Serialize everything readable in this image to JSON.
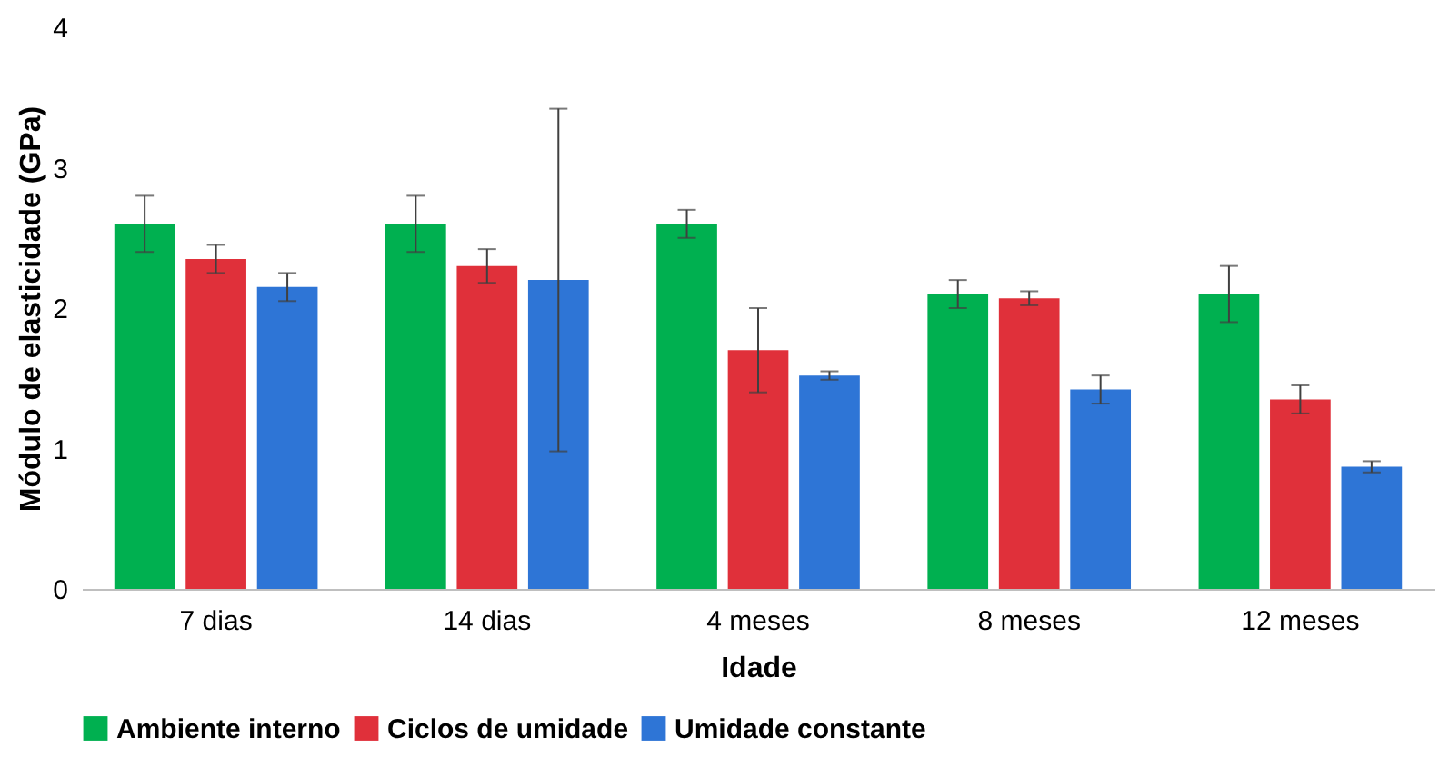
{
  "chart_data": {
    "type": "bar",
    "xlabel": "Idade",
    "ylabel": "Módulo de elasticidade (GPa)",
    "categories": [
      "7 dias",
      "14 dias",
      "4 meses",
      "8 meses",
      "12 meses"
    ],
    "series": [
      {
        "name": "Ambiente interno",
        "color": "#00b050",
        "values": [
          2.6,
          2.6,
          2.6,
          2.1,
          2.1
        ],
        "errors": [
          0.2,
          0.2,
          0.1,
          0.1,
          0.2
        ]
      },
      {
        "name": "Ciclos de umidade",
        "color": "#e0303a",
        "values": [
          2.35,
          2.3,
          1.7,
          2.07,
          1.35
        ],
        "errors": [
          0.1,
          0.12,
          0.3,
          0.05,
          0.1
        ]
      },
      {
        "name": "Umidade constante",
        "color": "#2e75d6",
        "values": [
          2.15,
          2.2,
          1.52,
          1.42,
          0.87
        ],
        "errors": [
          0.1,
          1.22,
          0.03,
          0.1,
          0.04
        ]
      }
    ],
    "ylim": [
      0,
      4
    ],
    "yticks": [
      0,
      1,
      2,
      3,
      4
    ],
    "grid": false,
    "legend": "bottom"
  }
}
